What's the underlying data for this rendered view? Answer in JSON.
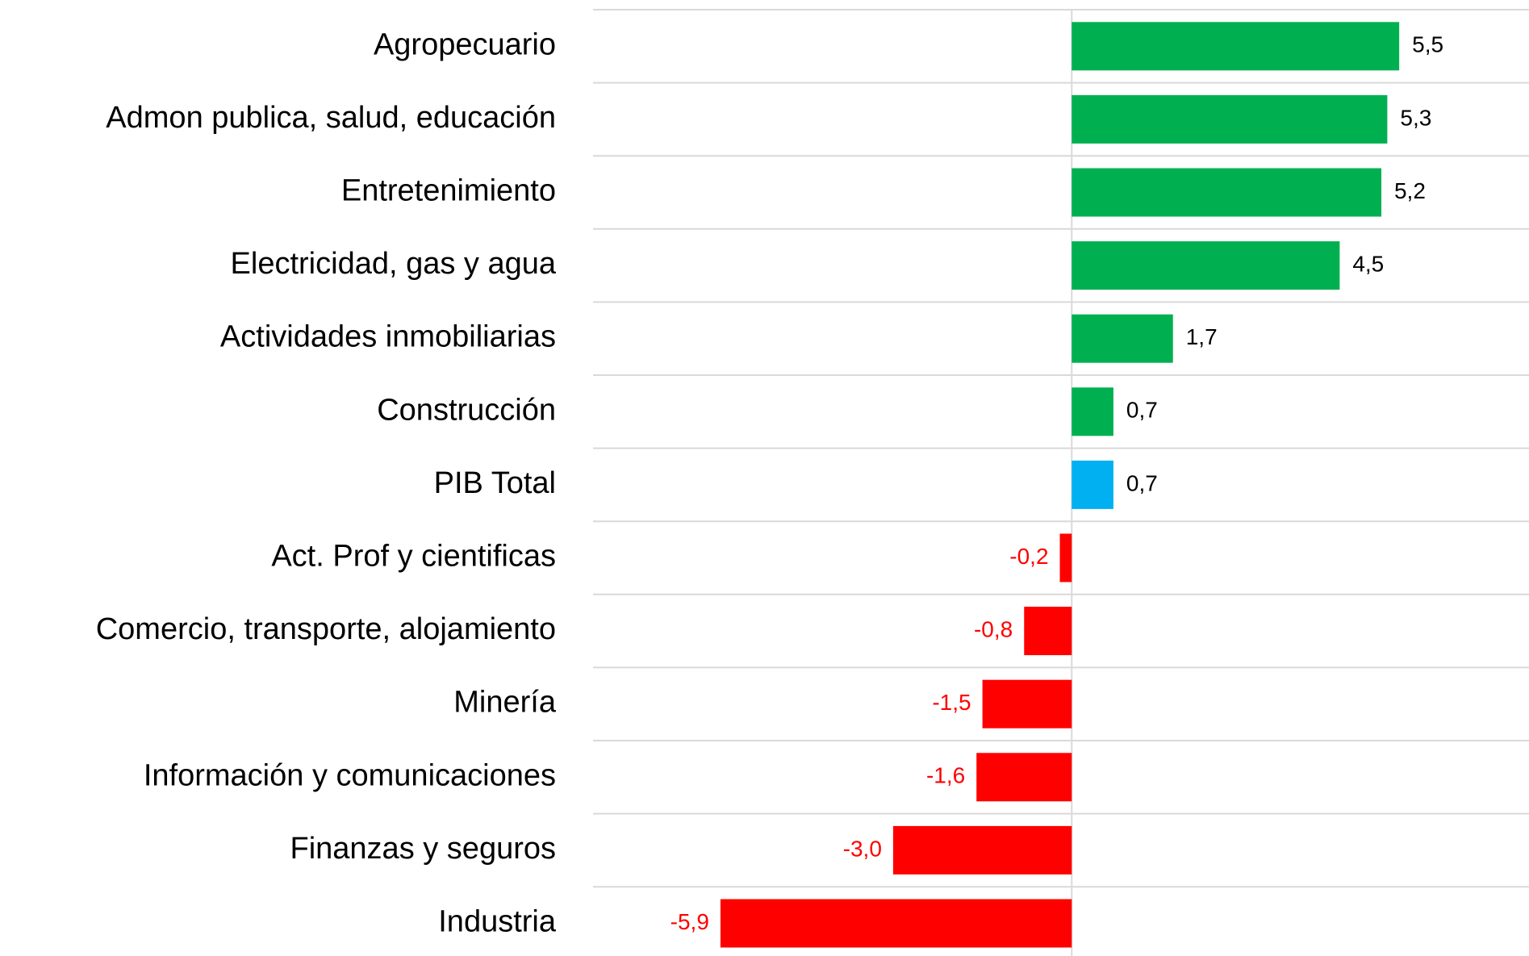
{
  "chart_data": {
    "type": "hbar",
    "categories": [
      "Agropecuario",
      "Admon publica, salud, educación",
      "Entretenimiento",
      "Electricidad, gas y agua",
      "Actividades inmobiliarias",
      "Construcción",
      "PIB Total",
      "Act. Prof y cientificas",
      "Comercio, transporte, alojamiento",
      "Minería",
      "Información y comunicaciones",
      "Finanzas y seguros",
      "Industria"
    ],
    "values": [
      5.5,
      5.3,
      5.2,
      4.5,
      1.7,
      0.7,
      0.7,
      -0.2,
      -0.8,
      -1.5,
      -1.6,
      -3.0,
      -5.9
    ],
    "value_labels": [
      "5,5",
      "5,3",
      "5,2",
      "4,5",
      "1,7",
      "0,7",
      "0,7",
      "-0,2",
      "-0,8",
      "-1,5",
      "-1,6",
      "-3,0",
      "-5,9"
    ],
    "colors": [
      "#00b050",
      "#00b050",
      "#00b050",
      "#00b050",
      "#00b050",
      "#00b050",
      "#00b0f0",
      "#ff0000",
      "#ff0000",
      "#ff0000",
      "#ff0000",
      "#ff0000",
      "#ff0000"
    ],
    "xlim": [
      -8.04,
      7.68
    ]
  }
}
